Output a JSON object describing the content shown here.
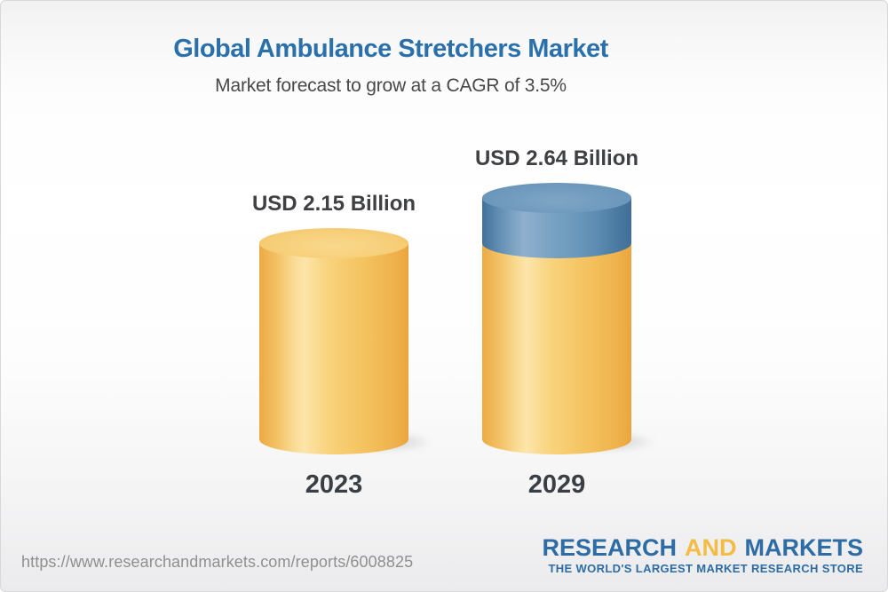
{
  "header": {
    "title": "Global Ambulance Stretchers Market",
    "subtitle": "Market forecast to grow at a CAGR of 3.5%"
  },
  "chart_data": {
    "type": "bar",
    "variant": "3d-cylinder",
    "title": "Global Ambulance Stretchers Market",
    "subtitle": "Market forecast to grow at a CAGR of 3.5%",
    "unit": "USD Billion",
    "cagr_percent": 3.5,
    "categories": [
      "2023",
      "2029"
    ],
    "values": [
      2.15,
      2.64
    ],
    "value_labels": [
      "USD 2.15 Billion",
      "USD 2.64 Billion"
    ],
    "ylim": [
      0,
      2.9
    ],
    "grid": false,
    "legend": false,
    "colors": {
      "bar_base": "#F6C66C",
      "bar_growth": "#6694BA",
      "title_blue": "#2A71AC",
      "label_dark": "#3E4043"
    }
  },
  "footer": {
    "url": "https://www.researchandmarkets.com/reports/6008825",
    "logo": {
      "word1": "RESEARCH",
      "word2": "AND",
      "word3": "MARKETS",
      "tagline": "THE WORLD'S LARGEST MARKET RESEARCH STORE"
    }
  }
}
